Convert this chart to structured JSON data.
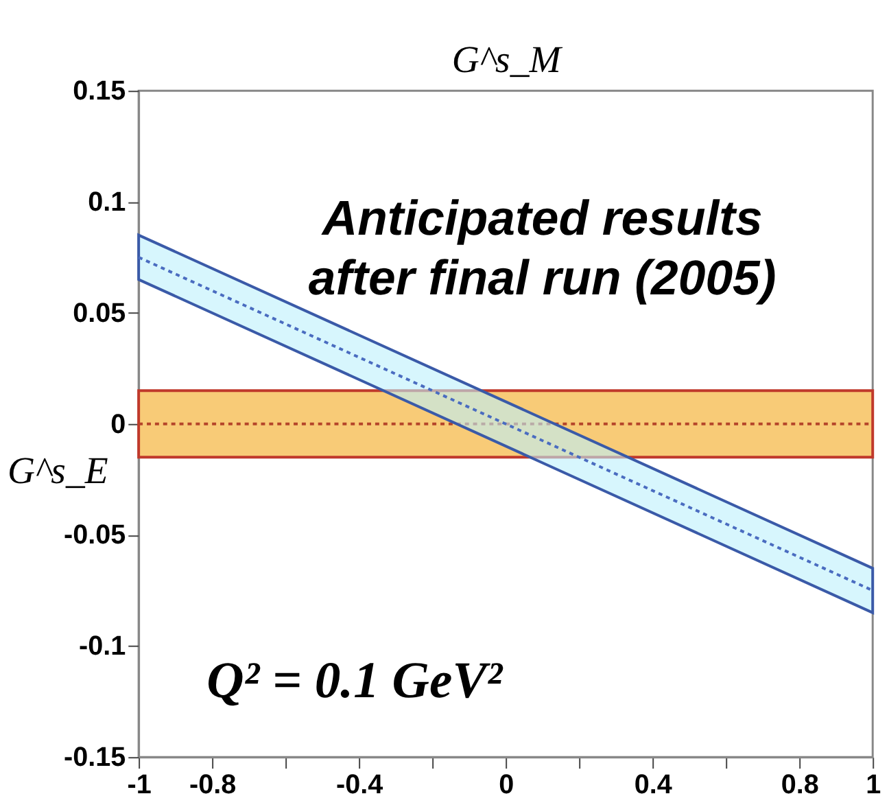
{
  "chart_data": {
    "type": "line",
    "xlabel": "G^s_M",
    "ylabel": "G^s_E",
    "annotations": [
      "Anticipated results after final run (2005)",
      "Q² = 0.1 GeV²"
    ],
    "series": [
      {
        "color": "#b5452a",
        "values": [
          0,
          0
        ],
        "lower": [
          -0.015,
          -0.015
        ],
        "upper": [
          0.015,
          0.015
        ]
      },
      {
        "color": "#4a6cc0",
        "values": [
          0.075,
          -0.075
        ],
        "lower": [
          0.065,
          -0.085
        ],
        "upper": [
          0.085,
          -0.065
        ]
      }
    ],
    "x": [
      -1,
      1
    ],
    "xlim": [
      -1,
      1
    ],
    "xticks": [
      -1,
      -0.8,
      {
        "value": -0.6,
        "label": null
      },
      -0.4,
      {
        "value": -0.2,
        "label": null
      },
      0,
      {
        "value": 0.2,
        "label": null
      },
      0.4,
      {
        "value": 0.6,
        "label": null
      },
      0.8,
      1
    ],
    "ylim": [
      -0.15,
      0.15
    ],
    "yticks": [
      -0.15,
      -0.1,
      -0.05,
      0,
      0.05,
      0.1,
      0.15
    ],
    "line_style": "dotted",
    "grid": false
  }
}
